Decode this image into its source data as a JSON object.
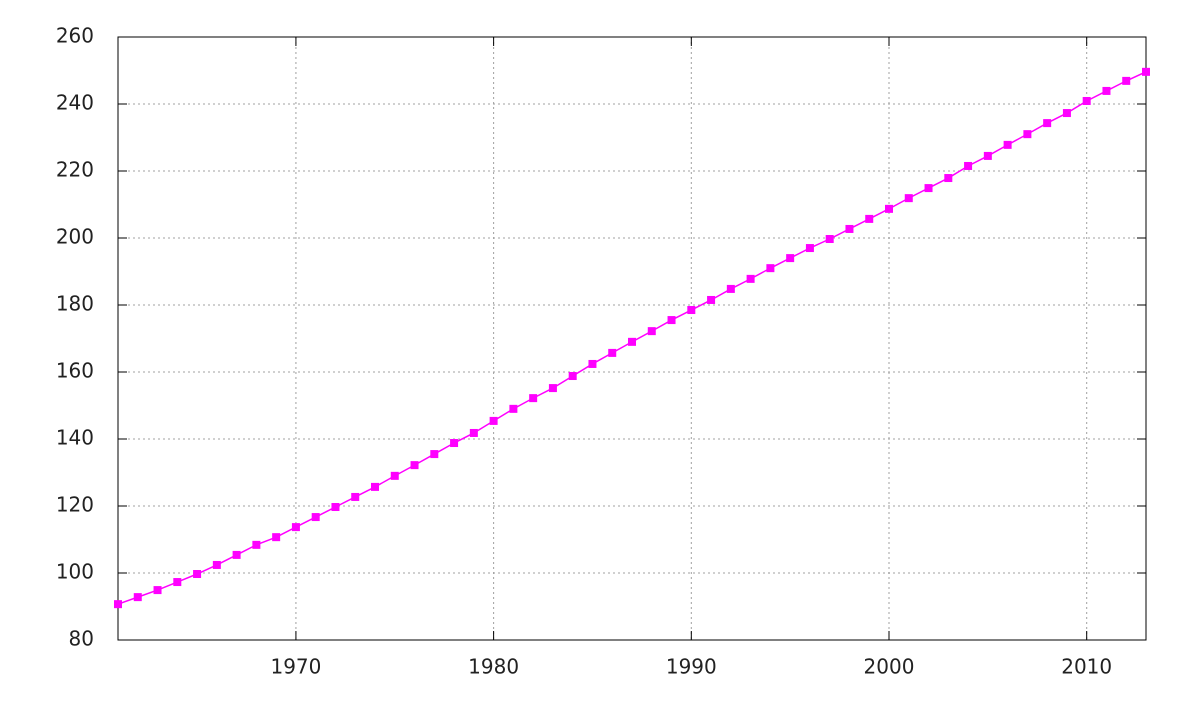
{
  "chart_data": {
    "type": "line",
    "x": [
      1961,
      1962,
      1963,
      1964,
      1965,
      1966,
      1967,
      1968,
      1969,
      1970,
      1971,
      1972,
      1973,
      1974,
      1975,
      1976,
      1977,
      1978,
      1979,
      1980,
      1981,
      1982,
      1983,
      1984,
      1985,
      1986,
      1987,
      1988,
      1989,
      1990,
      1991,
      1992,
      1993,
      1994,
      1995,
      1996,
      1997,
      1998,
      1999,
      2000,
      2001,
      2002,
      2003,
      2004,
      2005,
      2006,
      2007,
      2008,
      2009,
      2010,
      2011,
      2012,
      2013
    ],
    "values": [
      90.7,
      92.8,
      94.9,
      97.3,
      99.7,
      102.4,
      105.4,
      108.4,
      110.7,
      113.7,
      116.7,
      119.7,
      122.7,
      125.7,
      129.0,
      132.2,
      135.5,
      138.8,
      141.8,
      145.4,
      149.0,
      152.2,
      155.2,
      158.8,
      162.4,
      165.7,
      169.0,
      172.2,
      175.5,
      178.5,
      181.5,
      184.8,
      187.8,
      191.0,
      194.0,
      197.0,
      199.7,
      202.7,
      205.7,
      208.7,
      211.9,
      214.9,
      217.9,
      221.5,
      224.5,
      227.8,
      231.0,
      234.3,
      237.3,
      240.9,
      243.9,
      246.9,
      249.6
    ],
    "color": "#ff00ff",
    "xlim": [
      1961,
      2013
    ],
    "xticks": [
      1970,
      1980,
      1990,
      2000,
      2010
    ],
    "ylim": [
      80,
      260
    ],
    "yticks": [
      80,
      100,
      120,
      140,
      160,
      180,
      200,
      220,
      240,
      260
    ],
    "grid": true
  }
}
